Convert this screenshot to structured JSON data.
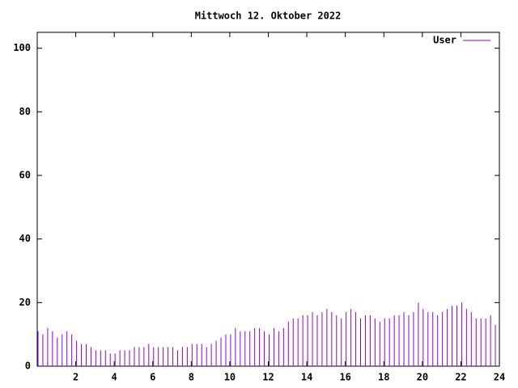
{
  "chart_data": {
    "type": "impulse",
    "title": "Mittwoch 12. Oktober 2022",
    "series": [
      {
        "name": "User",
        "color": "#9400d3",
        "x": [
          0,
          0.25,
          0.5,
          0.75,
          1,
          1.25,
          1.5,
          1.75,
          2,
          2.25,
          2.5,
          2.75,
          3,
          3.25,
          3.5,
          3.75,
          4,
          4.25,
          4.5,
          4.75,
          5,
          5.25,
          5.5,
          5.75,
          6,
          6.25,
          6.5,
          6.75,
          7,
          7.25,
          7.5,
          7.75,
          8,
          8.25,
          8.5,
          8.75,
          9,
          9.25,
          9.5,
          9.75,
          10,
          10.25,
          10.5,
          10.75,
          11,
          11.25,
          11.5,
          11.75,
          12,
          12.25,
          12.5,
          12.75,
          13,
          13.25,
          13.5,
          13.75,
          14,
          14.25,
          14.5,
          14.75,
          15,
          15.25,
          15.5,
          15.75,
          16,
          16.25,
          16.5,
          16.75,
          17,
          17.25,
          17.5,
          17.75,
          18,
          18.25,
          18.5,
          18.75,
          19,
          19.25,
          19.5,
          19.75,
          20,
          20.25,
          20.5,
          20.75,
          21,
          21.25,
          21.5,
          21.75,
          22,
          22.25,
          22.5,
          22.75,
          23,
          23.25,
          23.5,
          23.75
        ],
        "values": [
          11,
          10,
          12,
          11,
          9,
          10,
          11,
          10,
          8,
          7,
          7,
          6,
          5,
          5,
          5,
          4,
          4,
          5,
          5,
          5,
          6,
          6,
          6,
          7,
          6,
          6,
          6,
          6,
          6,
          5,
          6,
          6,
          7,
          7,
          7,
          6,
          7,
          8,
          9,
          10,
          10,
          12,
          11,
          11,
          11,
          12,
          12,
          11,
          10,
          12,
          11,
          12,
          14,
          15,
          15,
          16,
          16,
          17,
          16,
          17,
          18,
          17,
          16,
          15,
          17,
          18,
          17,
          15,
          16,
          16,
          15,
          14,
          15,
          15,
          16,
          16,
          17,
          16,
          17,
          20,
          18,
          17,
          17,
          16,
          17,
          18,
          19,
          19,
          20,
          18,
          17,
          15,
          15,
          15,
          16,
          13
        ]
      }
    ],
    "xlim": [
      0,
      24
    ],
    "xticks": [
      2,
      4,
      6,
      8,
      10,
      12,
      14,
      16,
      18,
      20,
      22,
      24
    ],
    "ylim": [
      0,
      105
    ],
    "yticks": [
      0,
      20,
      40,
      60,
      80,
      100
    ]
  }
}
